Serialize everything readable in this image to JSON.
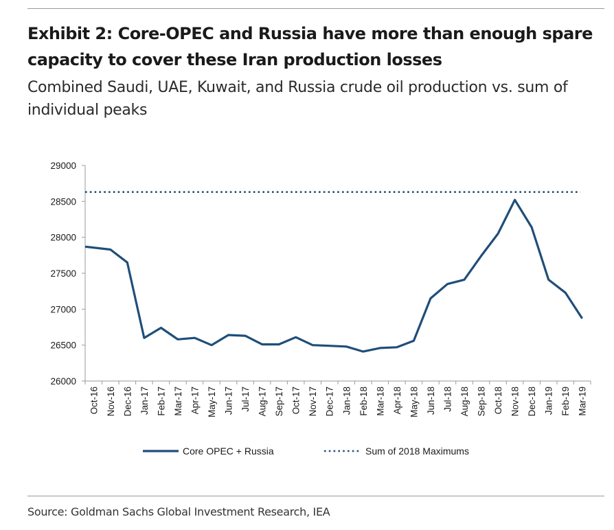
{
  "header": {
    "title": "Exhibit 2: Core-OPEC and Russia have more than enough spare capacity to cover these Iran production losses",
    "subtitle": "Combined Saudi, UAE, Kuwait, and Russia crude oil production vs. sum of individual peaks"
  },
  "footer": {
    "source": "Source: Goldman Sachs Global Investment Research, IEA"
  },
  "colors": {
    "series": "#1f4e79"
  },
  "chart_data": {
    "type": "line",
    "title": "",
    "xlabel": "",
    "ylabel": "",
    "ylim": [
      26000,
      29000
    ],
    "yticks": [
      26000,
      26500,
      27000,
      27500,
      28000,
      28500,
      29000
    ],
    "grid": false,
    "legend_position": "bottom",
    "categories": [
      "Oct-16",
      "Nov-16",
      "Dec-16",
      "Jan-17",
      "Feb-17",
      "Mar-17",
      "Apr-17",
      "May-17",
      "Jun-17",
      "Jul-17",
      "Aug-17",
      "Sep-17",
      "Oct-17",
      "Nov-17",
      "Dec-17",
      "Jan-18",
      "Feb-18",
      "Mar-18",
      "Apr-18",
      "May-18",
      "Jun-18",
      "Jul-18",
      "Aug-18",
      "Sep-18",
      "Oct-18",
      "Nov-18",
      "Dec-18",
      "Jan-19",
      "Feb-19",
      "Mar-19"
    ],
    "series": [
      {
        "name": "Core OPEC + Russia",
        "style": "solid",
        "values": [
          27870,
          27830,
          27650,
          26600,
          26740,
          26580,
          26600,
          26500,
          26640,
          26630,
          26510,
          26510,
          26610,
          26500,
          26490,
          26480,
          26410,
          26460,
          26470,
          26560,
          27150,
          27350,
          27410,
          27740,
          28050,
          28520,
          28140,
          27410,
          27230,
          26870
        ]
      },
      {
        "name": "Sum of 2018 Maximums",
        "style": "dotted",
        "values": [
          28630,
          28630,
          28630,
          28630,
          28630,
          28630,
          28630,
          28630,
          28630,
          28630,
          28630,
          28630,
          28630,
          28630,
          28630,
          28630,
          28630,
          28630,
          28630,
          28630,
          28630,
          28630,
          28630,
          28630,
          28630,
          28630,
          28630,
          28630,
          28630,
          28630
        ]
      }
    ]
  }
}
